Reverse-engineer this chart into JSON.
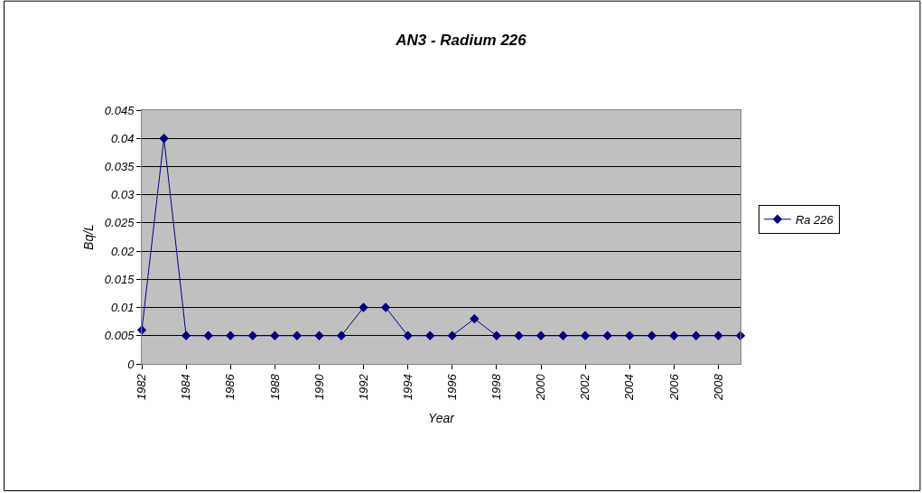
{
  "chart_data": {
    "type": "line",
    "title": "AN3 - Radium 226",
    "xlabel": "Year",
    "ylabel": "Bq/L",
    "x": [
      1982,
      1983,
      1984,
      1985,
      1986,
      1987,
      1988,
      1989,
      1990,
      1991,
      1992,
      1993,
      1994,
      1995,
      1996,
      1997,
      1998,
      1999,
      2000,
      2001,
      2002,
      2003,
      2004,
      2005,
      2006,
      2007,
      2008,
      2009
    ],
    "series": [
      {
        "name": "Ra 226",
        "color": "#000080",
        "values": [
          0.006,
          0.04,
          0.005,
          0.005,
          0.005,
          0.005,
          0.005,
          0.005,
          0.005,
          0.005,
          0.01,
          0.01,
          0.005,
          0.005,
          0.005,
          0.008,
          0.005,
          0.005,
          0.005,
          0.005,
          0.005,
          0.005,
          0.005,
          0.005,
          0.005,
          0.005,
          0.005,
          0.005
        ]
      }
    ],
    "xlim": [
      1982,
      2009
    ],
    "xticks": [
      1982,
      1984,
      1986,
      1988,
      1990,
      1992,
      1994,
      1996,
      1998,
      2000,
      2002,
      2004,
      2006,
      2008
    ],
    "ylim": [
      0,
      0.045
    ],
    "yticks": [
      0,
      0.005,
      0.01,
      0.015,
      0.02,
      0.025,
      0.03,
      0.035,
      0.04,
      0.045
    ],
    "grid": "y",
    "legend": "right",
    "marker": "diamond",
    "line_style": "solid"
  }
}
